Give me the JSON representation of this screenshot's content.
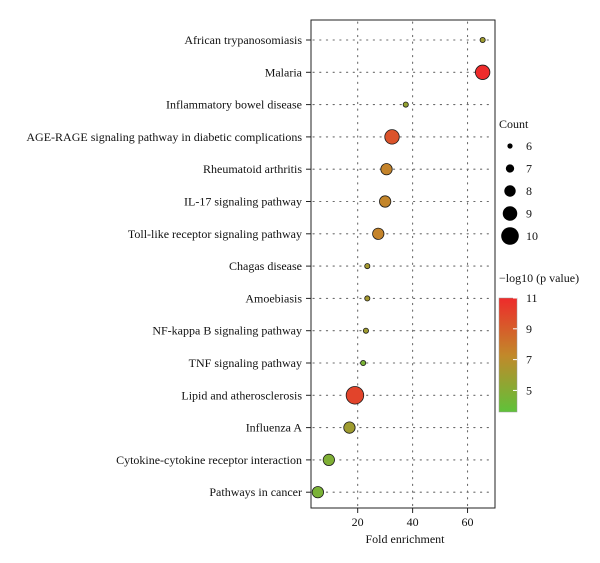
{
  "chart_data": {
    "type": "scatter",
    "xlabel": "Fold enrichment",
    "ylabel": "",
    "xlim": [
      3,
      70
    ],
    "xticks": [
      20,
      40,
      60
    ],
    "categories": [
      "African trypanosomiasis",
      "Malaria",
      "Inflammatory bowel disease",
      "AGE-RAGE signaling pathway in diabetic complications",
      "Rheumatoid arthritis",
      "IL-17 signaling pathway",
      "Toll-like receptor signaling pathway",
      "Chagas disease",
      "Amoebiasis",
      "NF-kappa B signaling pathway",
      "TNF signaling pathway",
      "Lipid and atherosclerosis",
      "Influenza A",
      "Cytokine-cytokine receptor interaction",
      "Pathways in cancer"
    ],
    "points": [
      {
        "category": "African trypanosomiasis",
        "fold_enrichment": 65.5,
        "count": 6,
        "neg_log10_p": 6.0
      },
      {
        "category": "Malaria",
        "fold_enrichment": 65.5,
        "count": 9,
        "neg_log10_p": 11.0
      },
      {
        "category": "Inflammatory bowel disease",
        "fold_enrichment": 37.5,
        "count": 6,
        "neg_log10_p": 5.6
      },
      {
        "category": "AGE-RAGE signaling pathway in diabetic complications",
        "fold_enrichment": 32.5,
        "count": 9,
        "neg_log10_p": 9.4
      },
      {
        "category": "Rheumatoid arthritis",
        "fold_enrichment": 30.5,
        "count": 8,
        "neg_log10_p": 7.5
      },
      {
        "category": "IL-17 signaling pathway",
        "fold_enrichment": 30.0,
        "count": 8,
        "neg_log10_p": 7.4
      },
      {
        "category": "Toll-like receptor signaling pathway",
        "fold_enrichment": 27.5,
        "count": 8,
        "neg_log10_p": 7.5
      },
      {
        "category": "Chagas disease",
        "fold_enrichment": 23.5,
        "count": 6,
        "neg_log10_p": 6.2
      },
      {
        "category": "Amoebiasis",
        "fold_enrichment": 23.5,
        "count": 6,
        "neg_log10_p": 6.2
      },
      {
        "category": "NF-kappa B signaling pathway",
        "fold_enrichment": 23.0,
        "count": 6,
        "neg_log10_p": 6.0
      },
      {
        "category": "TNF signaling pathway",
        "fold_enrichment": 22.0,
        "count": 6,
        "neg_log10_p": 4.6
      },
      {
        "category": "Lipid and atherosclerosis",
        "fold_enrichment": 19.0,
        "count": 10,
        "neg_log10_p": 10.0
      },
      {
        "category": "Influenza A",
        "fold_enrichment": 17.0,
        "count": 8,
        "neg_log10_p": 6.0
      },
      {
        "category": "Cytokine-cytokine receptor interaction",
        "fold_enrichment": 9.5,
        "count": 8,
        "neg_log10_p": 4.8
      },
      {
        "category": "Pathways in cancer",
        "fold_enrichment": 5.5,
        "count": 8,
        "neg_log10_p": 4.6
      }
    ],
    "size_legend": {
      "title": "Count",
      "values": [
        6,
        7,
        8,
        9,
        10
      ]
    },
    "color_legend": {
      "title": "−log10 (p value)",
      "ticks": [
        5,
        7,
        9,
        11
      ],
      "range": [
        3.6,
        11
      ],
      "colors": {
        "low": "#5fc23a",
        "mid": "#c2882a",
        "high": "#ee2b2b"
      }
    },
    "grid": true
  }
}
